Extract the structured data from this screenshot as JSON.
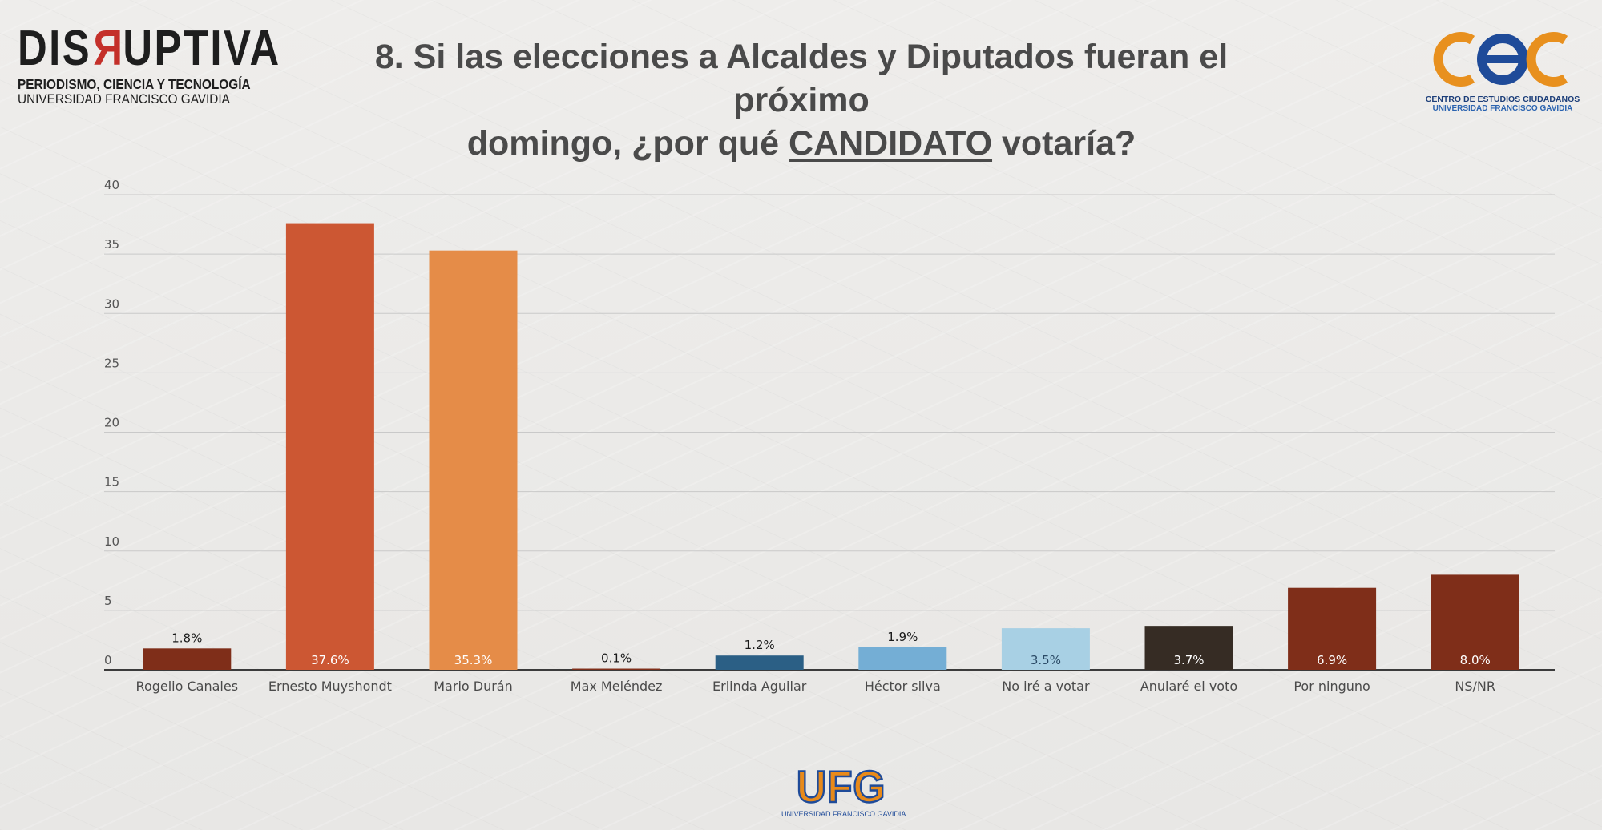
{
  "header": {
    "title_line1": "8. Si las elecciones a Alcaldes y Diputados fueran el próximo",
    "title_line2_pre": "domingo, ¿por qué ",
    "title_line2_underlined": "CANDIDATO",
    "title_line2_post": " votaría?"
  },
  "logos": {
    "left_brand_pre": "DIS",
    "left_brand_r": "R",
    "left_brand_post": "UPTIVA",
    "left_tagline1": "PERIODISMO, CIENCIA Y TECNOLOGÍA",
    "left_tagline2": "UNIVERSIDAD FRANCISCO GAVIDIA",
    "right_line1": "CENTRO DE ESTUDIOS CIUDADANOS",
    "right_line2": "UNIVERSIDAD FRANCISCO GAVIDIA",
    "bottom_mark": "UFG",
    "bottom_sub": "UNIVERSIDAD FRANCISCO GAVIDIA"
  },
  "colors": {
    "dark_brown": "#7f2e19",
    "orange_red": "#cc5733",
    "orange": "#e58c48",
    "dark_blue": "#2b5f85",
    "mid_blue": "#74aed5",
    "light_blue": "#a8d0e4",
    "dark_gray": "#362c24",
    "cec_orange": "#e8901e",
    "ufg_blue": "#1f4b99"
  },
  "chart_data": {
    "type": "bar",
    "title": "8. Si las elecciones a Alcaldes y Diputados fueran el próximo domingo, ¿por qué CANDIDATO votaría?",
    "xlabel": "",
    "ylabel": "",
    "ylim": [
      0,
      40
    ],
    "yticks": [
      0,
      5,
      10,
      15,
      20,
      25,
      30,
      35,
      40
    ],
    "grid": true,
    "categories": [
      "Rogelio Canales",
      "Ernesto Muyshondt",
      "Mario Durán",
      "Max Meléndez",
      "Erlinda Aguilar",
      "Héctor silva",
      "No iré a votar",
      "Anularé el voto",
      "Por ninguno",
      "NS/NR"
    ],
    "values": [
      1.8,
      37.6,
      35.3,
      0.1,
      1.2,
      1.9,
      3.5,
      3.7,
      6.9,
      8.0
    ],
    "labels": [
      "1.8%",
      "37.6%",
      "35.3%",
      "0.1%",
      "1.2%",
      "1.9%",
      "3.5%",
      "3.7%",
      "6.9%",
      "8.0%"
    ],
    "bar_colors": [
      "#7f2e19",
      "#cc5733",
      "#e58c48",
      "#7f2e19",
      "#2b5f85",
      "#74aed5",
      "#a8d0e4",
      "#362c24",
      "#7f2e19",
      "#7f2e19"
    ],
    "label_inside": [
      false,
      true,
      true,
      false,
      false,
      false,
      true,
      true,
      true,
      true
    ],
    "label_colors": [
      "#1a1a1a",
      "#ffffff",
      "#ffffff",
      "#1a1a1a",
      "#1a1a1a",
      "#1a1a1a",
      "#2b4a66",
      "#ffffff",
      "#ffffff",
      "#ffffff"
    ]
  }
}
